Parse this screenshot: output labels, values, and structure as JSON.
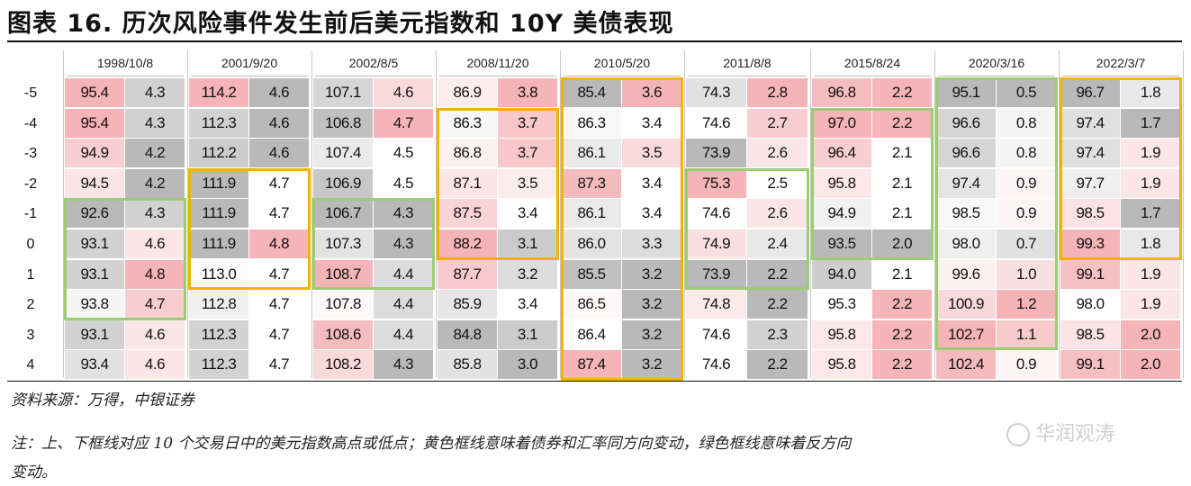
{
  "title": "图表 16. 历次风险事件发生前后美元指数和 10Y 美债表现",
  "columns": [
    "1998/10/8",
    "2001/9/20",
    "2002/8/5",
    "2008/11/20",
    "2010/5/20",
    "2011/8/8",
    "2015/8/24",
    "2020/3/16",
    "2022/3/7"
  ],
  "row_labels": [
    "-5",
    "-4",
    "-3",
    "-2",
    "-1",
    "0",
    "1",
    "2",
    "3",
    "4"
  ],
  "dxy": [
    [
      "95.4",
      "95.4",
      "94.9",
      "94.5",
      "92.6",
      "93.1",
      "93.1",
      "93.8",
      "93.1",
      "93.4"
    ],
    [
      "114.2",
      "112.3",
      "112.2",
      "111.9",
      "111.9",
      "111.9",
      "113.0",
      "112.8",
      "112.3",
      "112.3"
    ],
    [
      "107.1",
      "106.8",
      "107.4",
      "106.9",
      "106.7",
      "107.3",
      "108.7",
      "107.8",
      "108.6",
      "108.2"
    ],
    [
      "86.9",
      "86.3",
      "86.8",
      "87.1",
      "87.5",
      "88.2",
      "87.7",
      "85.9",
      "84.8",
      "85.8"
    ],
    [
      "85.4",
      "86.3",
      "86.1",
      "87.3",
      "86.1",
      "86.0",
      "85.5",
      "86.5",
      "86.4",
      "87.4"
    ],
    [
      "74.3",
      "74.6",
      "73.9",
      "75.3",
      "74.6",
      "74.9",
      "73.9",
      "74.8",
      "74.6",
      "74.6"
    ],
    [
      "96.8",
      "97.0",
      "96.4",
      "95.8",
      "94.9",
      "93.5",
      "94.0",
      "95.3",
      "95.8",
      "95.8"
    ],
    [
      "95.1",
      "96.6",
      "96.6",
      "97.4",
      "98.5",
      "98.0",
      "99.6",
      "100.9",
      "102.7",
      "102.4"
    ],
    [
      "96.7",
      "97.4",
      "97.4",
      "97.7",
      "98.5",
      "99.3",
      "99.1",
      "98.0",
      "98.5",
      "99.1"
    ]
  ],
  "ust10y": [
    [
      "4.3",
      "4.3",
      "4.2",
      "4.2",
      "4.3",
      "4.6",
      "4.8",
      "4.7",
      "4.6",
      "4.6"
    ],
    [
      "4.6",
      "4.6",
      "4.6",
      "4.7",
      "4.7",
      "4.8",
      "4.7",
      "4.7",
      "4.7",
      "4.7"
    ],
    [
      "4.6",
      "4.7",
      "4.5",
      "4.5",
      "4.3",
      "4.3",
      "4.4",
      "4.4",
      "4.4",
      "4.3"
    ],
    [
      "3.8",
      "3.7",
      "3.7",
      "3.5",
      "3.4",
      "3.1",
      "3.2",
      "3.4",
      "3.1",
      "3.0"
    ],
    [
      "3.6",
      "3.4",
      "3.5",
      "3.4",
      "3.4",
      "3.3",
      "3.2",
      "3.2",
      "3.2",
      "3.2"
    ],
    [
      "2.8",
      "2.7",
      "2.6",
      "2.5",
      "2.6",
      "2.4",
      "2.2",
      "2.2",
      "2.3",
      "2.2"
    ],
    [
      "2.2",
      "2.2",
      "2.1",
      "2.1",
      "2.1",
      "2.0",
      "2.1",
      "2.2",
      "2.2",
      "2.2"
    ],
    [
      "0.5",
      "0.8",
      "0.8",
      "0.9",
      "0.9",
      "0.7",
      "1.0",
      "1.2",
      "1.1",
      "0.9"
    ],
    [
      "1.8",
      "1.7",
      "1.9",
      "1.9",
      "1.7",
      "1.8",
      "1.9",
      "1.9",
      "2.0",
      "2.0"
    ]
  ],
  "highlight_boxes": [
    {
      "event": 0,
      "color": "green",
      "row_start": 4,
      "row_end": 7
    },
    {
      "event": 1,
      "color": "yellow",
      "row_start": 3,
      "row_end": 6
    },
    {
      "event": 2,
      "color": "green",
      "row_start": 4,
      "row_end": 6
    },
    {
      "event": 3,
      "color": "yellow",
      "row_start": 1,
      "row_end": 5
    },
    {
      "event": 4,
      "color": "yellow",
      "row_start": 0,
      "row_end": 9
    },
    {
      "event": 5,
      "color": "green",
      "row_start": 3,
      "row_end": 6
    },
    {
      "event": 6,
      "color": "green",
      "row_start": 1,
      "row_end": 5
    },
    {
      "event": 7,
      "color": "green",
      "row_start": 0,
      "row_end": 8
    },
    {
      "event": 8,
      "color": "yellow",
      "row_start": 0,
      "row_end": 5
    }
  ],
  "colors": {
    "yellow": "#f2b300",
    "green": "#9ccc76",
    "heat_high": "#f2a7ab",
    "heat_low": "#a8a8a8"
  },
  "source": "资料来源：万得，中银证券",
  "note_line1": "注：上、下框线对应 10 个交易日中的美元指数高点或低点；黄色框线意味着债券和汇率同方向变动，绿色框线意味着反方向",
  "note_line2": "变动。",
  "watermark": "华润观涛"
}
